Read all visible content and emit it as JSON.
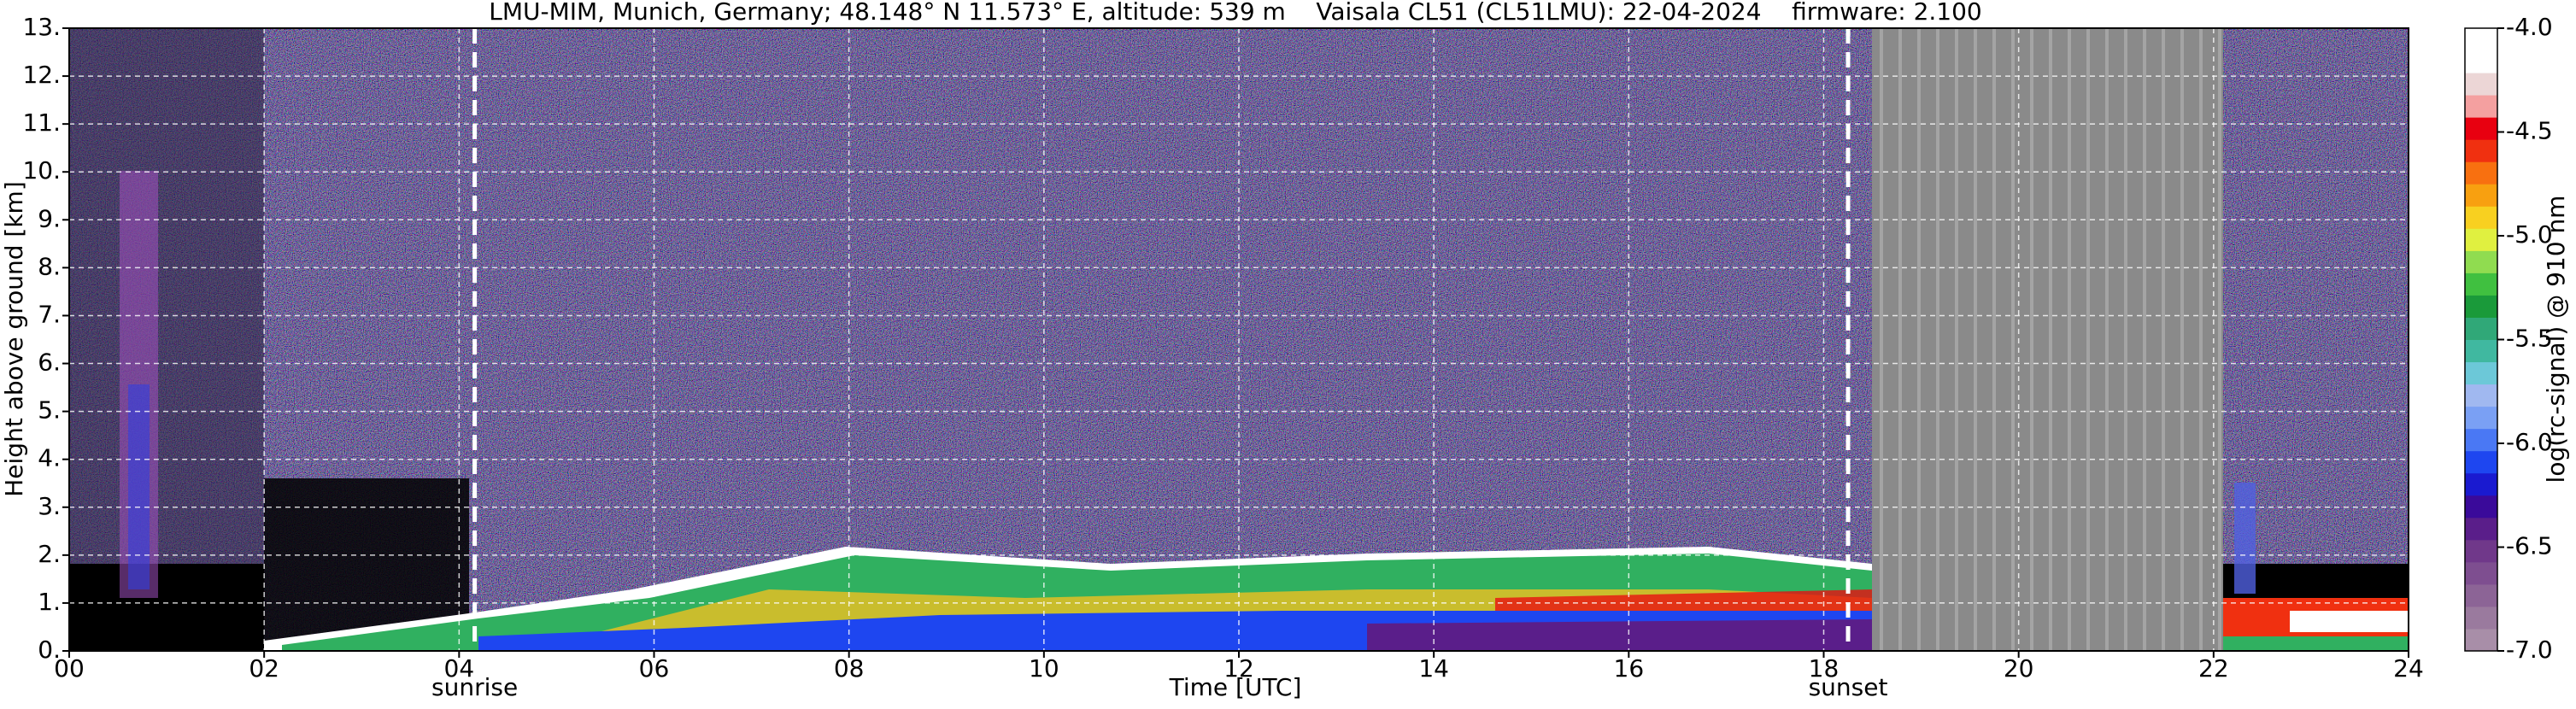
{
  "chart_data": {
    "type": "heatmap",
    "title": "LMU-MIM, Munich, Germany; 48.148° N 11.573° E, altitude: 539 m    Vaisala CL51 (CL51LMU): 22-04-2024    firmware: 2.100",
    "x_label": "Time [UTC]",
    "y_label": "Height above ground [km]",
    "xlim": [
      0,
      24
    ],
    "xticks": [
      {
        "value": 0,
        "label": "00"
      },
      {
        "value": 2,
        "label": "02"
      },
      {
        "value": 4,
        "label": "04"
      },
      {
        "value": 6,
        "label": "06"
      },
      {
        "value": 8,
        "label": "08"
      },
      10,
      12,
      14,
      16,
      18,
      20,
      22,
      24
    ],
    "ylim": [
      0,
      13
    ],
    "yticks": [
      {
        "value": 0,
        "label": "0."
      },
      {
        "value": 1,
        "label": "1."
      },
      {
        "value": 2,
        "label": "2."
      },
      {
        "value": 3,
        "label": "3."
      },
      {
        "value": 4,
        "label": "4."
      },
      {
        "value": 5,
        "label": "5."
      },
      {
        "value": 6,
        "label": "6."
      },
      {
        "value": 7,
        "label": "7."
      },
      {
        "value": 8,
        "label": "8."
      },
      {
        "value": 9,
        "label": "9."
      },
      {
        "value": 10,
        "label": "10."
      },
      {
        "value": 11,
        "label": "11."
      },
      {
        "value": 12,
        "label": "12."
      },
      {
        "value": 13,
        "label": "13."
      }
    ],
    "grid": true,
    "annotations": [
      {
        "text": "sunrise",
        "x": 4.16
      },
      {
        "text": "sunset",
        "x": 18.25
      }
    ],
    "colorbar": {
      "label": "log(rc-signal) @ 910 nm",
      "lim": [
        -7.0,
        -4.0
      ],
      "ticks": [
        {
          "value": -7.0,
          "label": "-7.0"
        },
        {
          "value": -6.5,
          "label": "-6.5"
        },
        {
          "value": -6.0,
          "label": "-6.0"
        },
        {
          "value": -5.5,
          "label": "-5.5"
        },
        {
          "value": -5.0,
          "label": "-5.0"
        },
        {
          "value": -4.5,
          "label": "-4.5"
        },
        {
          "value": -4.0,
          "label": "-4.0"
        }
      ],
      "colors": [
        "#a88ea8",
        "#9a7a9e",
        "#8c6496",
        "#7e4e90",
        "#70388a",
        "#5a1e8a",
        "#3a0a9a",
        "#1a1ad0",
        "#1e46f0",
        "#4a78f4",
        "#7aa0f4",
        "#a0b8f0",
        "#6cc8d8",
        "#40b8a0",
        "#30a878",
        "#1a9a3a",
        "#40c040",
        "#90dc50",
        "#e0f040",
        "#f8d020",
        "#f8a010",
        "#f87010",
        "#f03010",
        "#e80010",
        "#f4a0a0",
        "#ecd6d6",
        "#ffffff",
        "#ffffff"
      ]
    }
  }
}
